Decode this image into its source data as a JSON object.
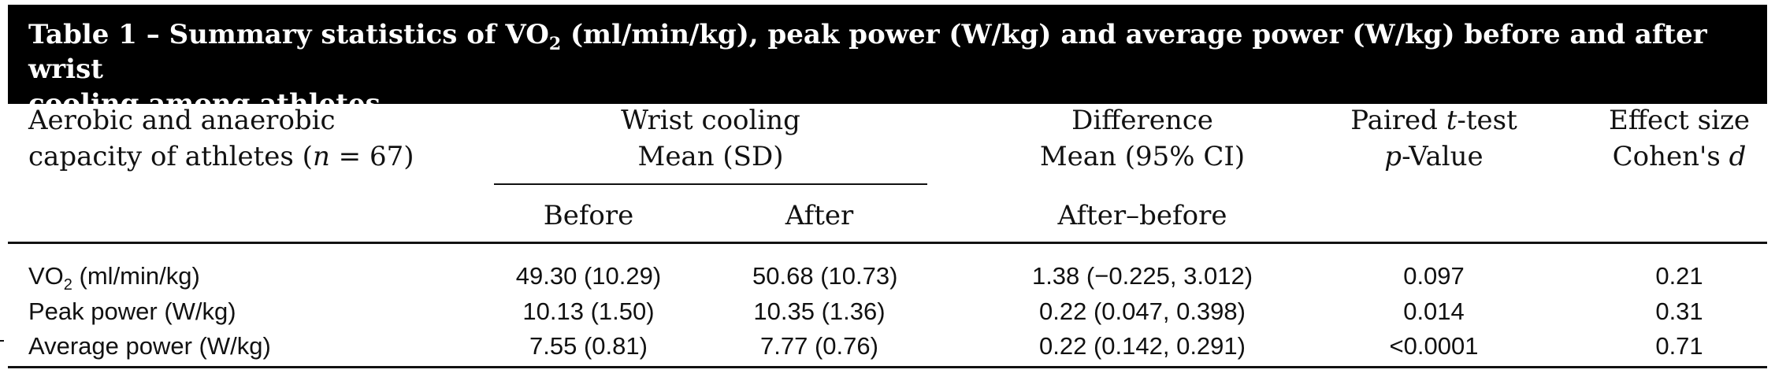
{
  "caption": {
    "prefix": "Table 1 – Summary statistics of VO",
    "sub": "2",
    "rest": " (ml/min/kg), peak power (W/kg) and average power (W/kg) before and after wrist",
    "line2": "cooling among athletes."
  },
  "header": {
    "col1_line1": "Aerobic and anaerobic",
    "col1_line2_pre": "capacity of athletes (",
    "col1_n": "n",
    "col1_line2_post": " = 67)",
    "wrist_line1": "Wrist cooling",
    "wrist_line2": "Mean (SD)",
    "before": "Before",
    "after": "After",
    "diff_line1": "Difference",
    "diff_line2": "Mean (95% CI)",
    "diff_sub": "After–before",
    "ttest_line1_pre": "Paired ",
    "ttest_t": "t",
    "ttest_line1_post": "-test",
    "ttest_p": "p",
    "ttest_line2_post": "-Value",
    "effect_line1": "Effect size",
    "effect_line2_pre": "Cohen's ",
    "effect_d": "d"
  },
  "rows": [
    {
      "label_pre": "VO",
      "label_sub": "2",
      "label_post": " (ml/min/kg)",
      "before": "49.30 (10.29)",
      "after": "50.68 (10.73)",
      "difference": "1.38 (−0.225, 3.012)",
      "p_value": "0.097",
      "effect": "0.21"
    },
    {
      "label_pre": "Peak power (W/kg)",
      "label_sub": "",
      "label_post": "",
      "before": "10.13 (1.50)",
      "after": "10.35 (1.36)",
      "difference": "0.22 (0.047, 0.398)",
      "p_value": "0.014",
      "effect": "0.31"
    },
    {
      "label_pre": "Average power (W/kg)",
      "label_sub": "",
      "label_post": "",
      "before": "7.55 (0.81)",
      "after": "7.77 (0.76)",
      "difference": "0.22 (0.142, 0.291)",
      "p_value": "<0.0001",
      "effect": "0.71"
    }
  ]
}
